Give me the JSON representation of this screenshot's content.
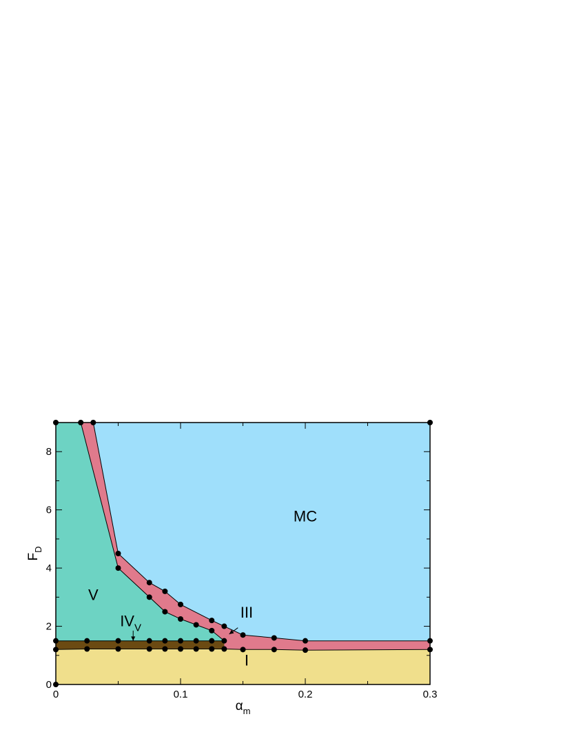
{
  "chart_data": {
    "type": "area",
    "title": "",
    "xlabel": "α",
    "xlabel_sub": "m",
    "ylabel": "F",
    "ylabel_sub": "D",
    "xlim": [
      0,
      0.3
    ],
    "ylim": [
      0,
      9
    ],
    "xticks": [
      0,
      0.1,
      0.2,
      0.3
    ],
    "xtick_labels": [
      "0",
      "0.1",
      "0.2",
      "0.3"
    ],
    "yticks": [
      0,
      2,
      4,
      6,
      8
    ],
    "ytick_labels": [
      "0",
      "2",
      "4",
      "6",
      "8"
    ],
    "grid": false,
    "colors": {
      "I": "#f0df8c",
      "IV_v": "#6b4a12",
      "V": "#6dd3c3",
      "III": "#e07a8c",
      "MC": "#9fdffb"
    },
    "boundaries": {
      "I_upper": {
        "x": [
          0,
          0.025,
          0.05,
          0.075,
          0.0875,
          0.1,
          0.1125,
          0.125,
          0.135,
          0.15,
          0.175,
          0.2,
          0.3
        ],
        "y": [
          1.2,
          1.22,
          1.22,
          1.22,
          1.22,
          1.22,
          1.22,
          1.22,
          1.22,
          1.2,
          1.2,
          1.18,
          1.2
        ]
      },
      "IVv_upper": {
        "x": [
          0,
          0.025,
          0.05,
          0.075,
          0.0875,
          0.1,
          0.1125,
          0.125,
          0.135
        ],
        "y": [
          1.5,
          1.5,
          1.5,
          1.5,
          1.5,
          1.5,
          1.5,
          1.5,
          1.5
        ]
      },
      "V_upper": {
        "x": [
          0.02,
          0.05,
          0.075,
          0.0875,
          0.1,
          0.1125,
          0.125,
          0.135
        ],
        "y": [
          9,
          4,
          3,
          2.5,
          2.25,
          2.05,
          1.85,
          1.5
        ]
      },
      "III_upper": {
        "x": [
          0.03,
          0.05,
          0.075,
          0.0875,
          0.1,
          0.125,
          0.135,
          0.15,
          0.175,
          0.2,
          0.3
        ],
        "y": [
          9,
          4.5,
          3.5,
          3.2,
          2.75,
          2.2,
          2.0,
          1.7,
          1.6,
          1.5,
          1.5
        ]
      }
    },
    "points": [
      [
        0,
        0
      ],
      [
        0,
        9
      ],
      [
        0.02,
        9
      ],
      [
        0.03,
        9
      ],
      [
        0.3,
        9
      ],
      [
        0,
        1.5
      ],
      [
        0,
        1.2
      ],
      [
        0.025,
        1.5
      ],
      [
        0.025,
        1.22
      ],
      [
        0.05,
        4.5
      ],
      [
        0.05,
        4
      ],
      [
        0.05,
        1.5
      ],
      [
        0.05,
        1.22
      ],
      [
        0.075,
        3.5
      ],
      [
        0.075,
        3
      ],
      [
        0.075,
        1.5
      ],
      [
        0.075,
        1.22
      ],
      [
        0.0875,
        3.2
      ],
      [
        0.0875,
        2.5
      ],
      [
        0.0875,
        1.5
      ],
      [
        0.0875,
        1.22
      ],
      [
        0.1,
        2.75
      ],
      [
        0.1,
        2.25
      ],
      [
        0.1,
        1.5
      ],
      [
        0.1,
        1.22
      ],
      [
        0.1125,
        2.05
      ],
      [
        0.1125,
        1.5
      ],
      [
        0.1125,
        1.22
      ],
      [
        0.125,
        2.2
      ],
      [
        0.125,
        1.85
      ],
      [
        0.125,
        1.5
      ],
      [
        0.125,
        1.22
      ],
      [
        0.135,
        2.0
      ],
      [
        0.135,
        1.5
      ],
      [
        0.135,
        1.22
      ],
      [
        0.15,
        1.7
      ],
      [
        0.15,
        1.2
      ],
      [
        0.175,
        1.6
      ],
      [
        0.175,
        1.2
      ],
      [
        0.2,
        1.5
      ],
      [
        0.2,
        1.18
      ],
      [
        0.3,
        1.5
      ],
      [
        0.3,
        1.2
      ]
    ],
    "region_labels": [
      {
        "id": "MC",
        "text": "MC",
        "sub": "",
        "x": 0.2,
        "y": 5.6
      },
      {
        "id": "V",
        "text": "V",
        "sub": "",
        "x": 0.03,
        "y": 2.9
      },
      {
        "id": "IVv",
        "text": "IV",
        "sub": "V",
        "x": 0.06,
        "y": 2.0
      },
      {
        "id": "III",
        "text": "III",
        "sub": "",
        "x": 0.153,
        "y": 2.3
      },
      {
        "id": "I",
        "text": "I",
        "sub": "",
        "x": 0.153,
        "y": 0.65
      }
    ],
    "arrows": [
      {
        "from": [
          0.062,
          1.85
        ],
        "to": [
          0.062,
          1.5
        ]
      },
      {
        "from": [
          0.146,
          1.95
        ],
        "to": [
          0.139,
          1.73
        ]
      }
    ]
  }
}
